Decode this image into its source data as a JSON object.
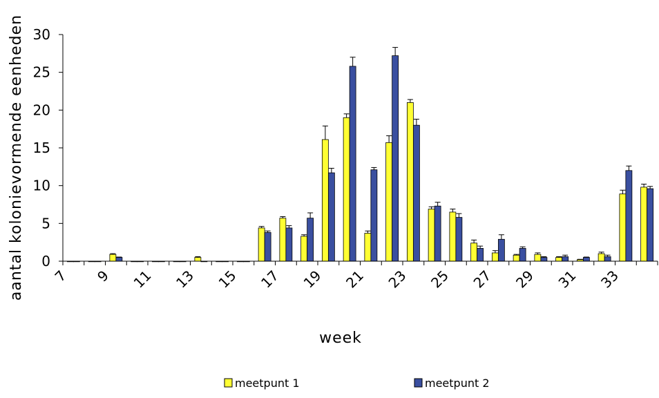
{
  "chart_data": {
    "type": "bar",
    "xlabel": "week",
    "ylabel": "aantal kolonievormende eenheden",
    "ylim": [
      0,
      30
    ],
    "yticks": [
      0,
      5,
      10,
      15,
      20,
      25,
      30
    ],
    "x_tick_labels": [
      "7",
      "9",
      "11",
      "13",
      "15",
      "17",
      "19",
      "21",
      "23",
      "25",
      "27",
      "29",
      "31",
      "33"
    ],
    "categories": [
      7,
      8,
      9,
      10,
      11,
      12,
      13,
      14,
      15,
      16,
      17,
      18,
      19,
      20,
      21,
      22,
      23,
      24,
      25,
      26,
      27,
      28,
      29,
      30,
      31,
      32,
      33,
      34
    ],
    "legend_position": "bottom",
    "grid": false,
    "series": [
      {
        "name": "meetpunt 1",
        "color": "#ffff33",
        "values": [
          0,
          0,
          0.9,
          0,
          0,
          0,
          0.5,
          0,
          0,
          4.4,
          5.7,
          3.3,
          16.1,
          19.0,
          3.7,
          15.7,
          21.0,
          6.9,
          6.5,
          2.4,
          1.1,
          0.8,
          0.9,
          0.5,
          0.2,
          1.0,
          8.9,
          9.8
        ],
        "errors": [
          0,
          0,
          0.1,
          0,
          0,
          0,
          0.1,
          0,
          0,
          0.2,
          0.2,
          0.2,
          1.8,
          0.5,
          0.3,
          0.9,
          0.4,
          0.3,
          0.4,
          0.4,
          0.3,
          0.1,
          0.2,
          0.1,
          0.05,
          0.2,
          0.5,
          0.4
        ]
      },
      {
        "name": "meetpunt 2",
        "color": "#3a4fa0",
        "values": [
          0,
          0,
          0.5,
          0,
          0,
          0,
          0,
          0,
          0,
          3.8,
          4.4,
          5.7,
          11.7,
          25.8,
          12.1,
          27.2,
          18.0,
          7.3,
          5.8,
          1.7,
          2.9,
          1.7,
          0.5,
          0.6,
          0.5,
          0.6,
          12.0,
          9.6
        ],
        "errors": [
          0,
          0,
          0.05,
          0,
          0,
          0,
          0,
          0,
          0,
          0.2,
          0.3,
          0.7,
          0.6,
          1.2,
          0.3,
          1.1,
          0.8,
          0.5,
          0.5,
          0.3,
          0.6,
          0.2,
          0.1,
          0.2,
          0.05,
          0.2,
          0.6,
          0.3
        ]
      }
    ]
  }
}
